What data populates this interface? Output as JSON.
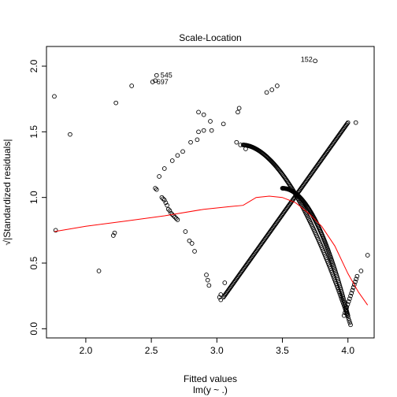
{
  "chart_data": {
    "type": "scatter",
    "title": "Scale-Location",
    "xlabel": "Fitted values",
    "xsublabel": "lm(y ~ .)",
    "ylabel": "√|Standardized residuals|",
    "xlim": [
      1.7,
      4.2
    ],
    "ylim": [
      -0.07,
      2.15
    ],
    "xticks": [
      2.0,
      2.5,
      3.0,
      3.5,
      4.0
    ],
    "xtick_labels": [
      "2.0",
      "2.5",
      "3.0",
      "3.5",
      "4.0"
    ],
    "yticks": [
      0.0,
      0.5,
      1.0,
      1.5,
      2.0
    ],
    "ytick_labels": [
      "0.0",
      "0.5",
      "1.0",
      "1.5",
      "2.0"
    ],
    "grid": false,
    "legend": "none",
    "point_color": "#000000",
    "smooth_color": "#ff0000",
    "points": [
      [
        1.76,
        1.77
      ],
      [
        1.77,
        0.75
      ],
      [
        1.88,
        1.48
      ],
      [
        2.1,
        0.44
      ],
      [
        2.21,
        0.71
      ],
      [
        2.22,
        0.73
      ],
      [
        2.23,
        1.72
      ],
      [
        2.35,
        1.85
      ],
      [
        2.51,
        1.88
      ],
      [
        2.53,
        1.89
      ],
      [
        2.54,
        1.93
      ],
      [
        2.53,
        1.07
      ],
      [
        2.54,
        1.06
      ],
      [
        2.56,
        1.16
      ],
      [
        2.58,
        1.0
      ],
      [
        2.59,
        0.99
      ],
      [
        2.6,
        0.98
      ],
      [
        2.6,
        1.22
      ],
      [
        2.61,
        0.96
      ],
      [
        2.62,
        0.94
      ],
      [
        2.63,
        0.91
      ],
      [
        2.64,
        0.9
      ],
      [
        2.65,
        0.88
      ],
      [
        2.66,
        0.87
      ],
      [
        2.66,
        1.28
      ],
      [
        2.67,
        0.86
      ],
      [
        2.68,
        0.85
      ],
      [
        2.69,
        0.84
      ],
      [
        2.7,
        0.83
      ],
      [
        2.7,
        1.32
      ],
      [
        2.74,
        1.35
      ],
      [
        2.76,
        0.74
      ],
      [
        2.79,
        0.67
      ],
      [
        2.8,
        1.42
      ],
      [
        2.81,
        0.65
      ],
      [
        2.83,
        0.59
      ],
      [
        2.85,
        1.44
      ],
      [
        2.86,
        1.5
      ],
      [
        2.86,
        1.65
      ],
      [
        2.9,
        1.63
      ],
      [
        2.9,
        1.51
      ],
      [
        2.92,
        0.41
      ],
      [
        2.93,
        0.37
      ],
      [
        2.94,
        0.33
      ],
      [
        2.95,
        1.58
      ],
      [
        2.96,
        1.51
      ],
      [
        3.02,
        0.24
      ],
      [
        3.03,
        0.22
      ],
      [
        3.03,
        0.26
      ],
      [
        3.05,
        1.56
      ],
      [
        3.06,
        0.35
      ],
      [
        3.16,
        1.65
      ],
      [
        3.17,
        1.68
      ],
      [
        3.15,
        1.42
      ],
      [
        3.18,
        1.4
      ],
      [
        3.22,
        1.37
      ],
      [
        3.38,
        1.8
      ],
      [
        3.42,
        1.82
      ],
      [
        3.46,
        1.85
      ],
      [
        3.75,
        2.04
      ],
      [
        4.06,
        1.57
      ],
      [
        4.1,
        0.44
      ],
      [
        4.15,
        0.56
      ]
    ],
    "labeled_points": [
      {
        "label": "152",
        "x": 3.76,
        "y": 2.05,
        "side": "left"
      },
      {
        "label": "545",
        "x": 2.54,
        "y": 1.93,
        "side": "right"
      },
      {
        "label": "697",
        "x": 2.51,
        "y": 1.88,
        "side": "right"
      }
    ],
    "dense_branches": [
      {
        "name": "rising",
        "x_from": 3.05,
        "x_to": 4.0,
        "y_from": 0.24,
        "y_to": 1.57,
        "n": 170
      },
      {
        "name": "falling",
        "x_from": 3.2,
        "x_to": 4.02,
        "y_from": 1.4,
        "y_to": 0.03,
        "curve": 1.8,
        "n": 150
      },
      {
        "name": "descent",
        "x_from": 3.5,
        "x_to": 4.0,
        "y_from": 1.07,
        "y_to": 0.1,
        "curve": 2.0,
        "n": 130
      },
      {
        "name": "upturn",
        "x_from": 3.97,
        "x_to": 4.07,
        "y_from": 0.1,
        "y_to": 0.4,
        "n": 15
      }
    ],
    "smooth": [
      [
        1.76,
        0.74
      ],
      [
        2.0,
        0.78
      ],
      [
        2.3,
        0.82
      ],
      [
        2.6,
        0.86
      ],
      [
        2.9,
        0.91
      ],
      [
        3.1,
        0.93
      ],
      [
        3.2,
        0.94
      ],
      [
        3.3,
        1.0
      ],
      [
        3.4,
        1.01
      ],
      [
        3.5,
        1.0
      ],
      [
        3.6,
        0.96
      ],
      [
        3.7,
        0.88
      ],
      [
        3.8,
        0.78
      ],
      [
        3.9,
        0.63
      ],
      [
        4.0,
        0.42
      ],
      [
        4.08,
        0.28
      ],
      [
        4.15,
        0.18
      ]
    ]
  }
}
